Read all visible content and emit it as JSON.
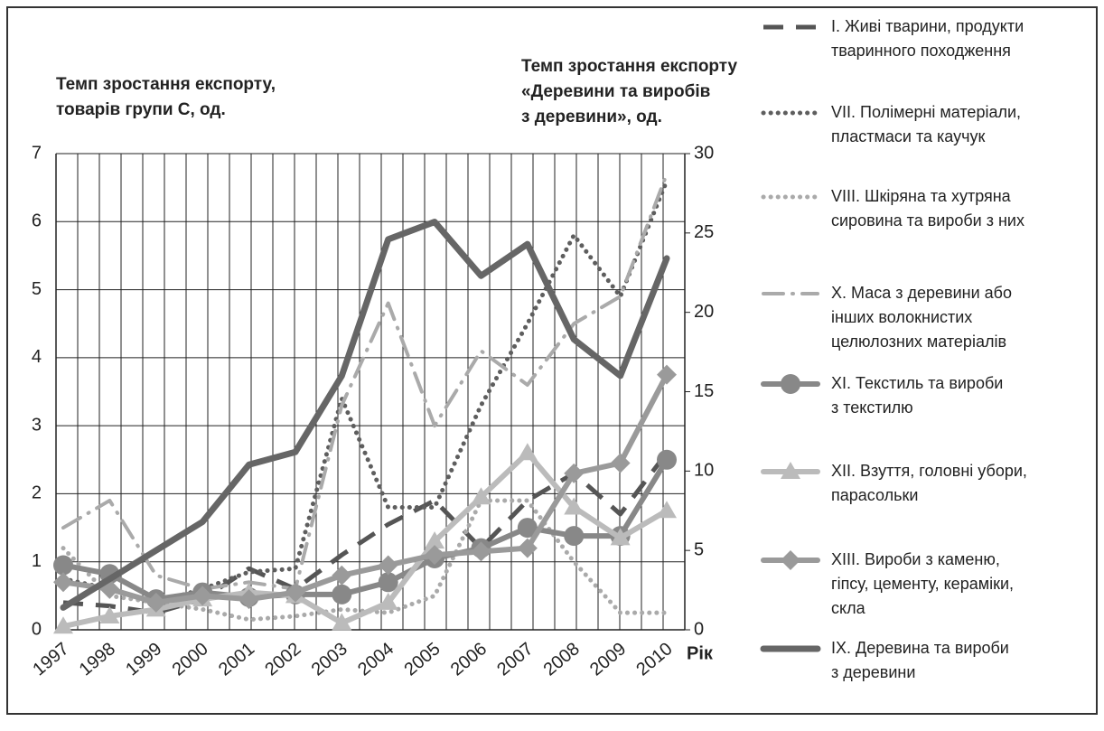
{
  "chart_data": {
    "type": "line",
    "y_label": "Темп зростання експорту,\nтоварів групи С, од.",
    "y2_label": "Темп зростання експорту\n«Деревини та виробів\nз деревини», од.",
    "x_label": "Рік",
    "categories": [
      "1997",
      "1998",
      "1999",
      "2000",
      "2001",
      "2002",
      "2003",
      "2004",
      "2005",
      "2006",
      "2007",
      "2008",
      "2009",
      "2010"
    ],
    "ylim": [
      0,
      7
    ],
    "yticks": [
      0,
      1,
      2,
      3,
      4,
      5,
      6,
      7
    ],
    "y2lim": [
      0,
      30
    ],
    "y2ticks": [
      0,
      5,
      10,
      15,
      20,
      25,
      30
    ],
    "grid": true,
    "legend": "right",
    "series": [
      {
        "name": "I. Живі тварини, продукти\nтваринного походження",
        "color": "#555555",
        "style": "dashed",
        "values": [
          0.4,
          0.35,
          0.25,
          0.45,
          0.9,
          0.6,
          1.1,
          1.55,
          1.9,
          1.2,
          1.9,
          2.3,
          1.7,
          2.6
        ]
      },
      {
        "name": "VII. Полімерні матеріали,\nпластмаси та каучук",
        "color": "#5e5e5e",
        "style": "dotted",
        "values": [
          0.75,
          0.6,
          0.4,
          0.6,
          0.85,
          0.9,
          3.4,
          1.8,
          1.8,
          3.3,
          4.5,
          5.8,
          4.9,
          6.6
        ]
      },
      {
        "name": "VIII. Шкіряна та хутряна\nсировина та вироби з них",
        "color": "#aaaaaa",
        "style": "dotted",
        "values": [
          1.2,
          0.5,
          0.4,
          0.3,
          0.15,
          0.2,
          0.3,
          0.25,
          0.5,
          1.9,
          1.9,
          1.0,
          0.25,
          0.25
        ]
      },
      {
        "name": "X. Маса з деревини або\nінших волокнистих\nцелюлозних матеріалів",
        "color": "#aaaaaa",
        "style": "dashdot",
        "values": [
          1.5,
          1.9,
          0.8,
          0.6,
          0.7,
          0.6,
          3.3,
          4.8,
          3.0,
          4.1,
          3.6,
          4.5,
          4.9,
          6.7
        ]
      },
      {
        "name": "XI. Текстиль та вироби\nз текстилю",
        "color": "#888888",
        "style": "solid",
        "marker": "circle",
        "values": [
          0.95,
          0.82,
          0.45,
          0.55,
          0.48,
          0.52,
          0.52,
          0.7,
          1.05,
          1.2,
          1.5,
          1.38,
          1.38,
          2.5
        ]
      },
      {
        "name": "XII. Взуття, головні убори,\nпарасольки",
        "color": "#bbbbbb",
        "style": "solid",
        "marker": "triangle",
        "values": [
          0.05,
          0.2,
          0.3,
          0.45,
          0.55,
          0.5,
          0.1,
          0.4,
          1.3,
          1.95,
          2.6,
          1.8,
          1.35,
          1.75
        ]
      },
      {
        "name": "XIII. Вироби з каменю,\nгіпсу, цементу, кераміки,\nскла",
        "color": "#9a9a9a",
        "style": "solid",
        "marker": "diamond",
        "values": [
          0.7,
          0.6,
          0.4,
          0.5,
          0.45,
          0.55,
          0.8,
          0.95,
          1.1,
          1.15,
          1.2,
          2.3,
          2.45,
          3.75
        ]
      },
      {
        "name": "IX. Деревина та вироби\nз деревини",
        "color": "#666666",
        "style": "thick",
        "axis": "y2",
        "values": [
          1.4,
          3.2,
          5.0,
          6.8,
          10.4,
          11.2,
          16.0,
          24.6,
          25.7,
          22.3,
          24.3,
          18.3,
          16.0,
          23.4
        ]
      }
    ]
  }
}
